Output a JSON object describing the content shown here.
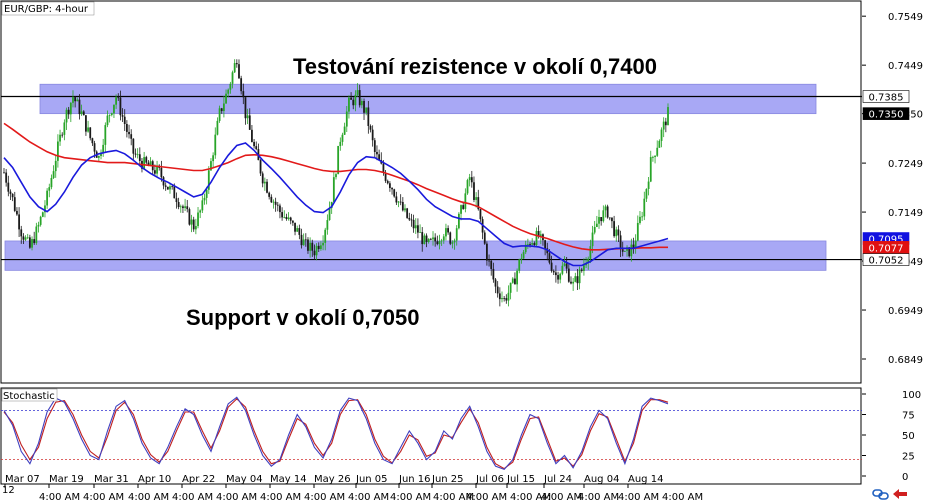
{
  "window": {
    "symbol_label": "EUR/GBP: 4-hour",
    "stoch_label": "Stochastic",
    "stoch_corner": "12"
  },
  "colors": {
    "zone": "#a8a8f5",
    "zone_border": "#8888e0",
    "ma_blue": "#1a1adc",
    "ma_red": "#e21a1a",
    "candle_up": "#28a428",
    "candle_down": "#1a1a1a",
    "stoch_k": "#4040c0",
    "stoch_d": "#c02020",
    "tag_blue": "#1010e0",
    "tag_red": "#e01010"
  },
  "chart_data": [
    {
      "type": "candlestick",
      "title": "EUR/GBP: 4-hour",
      "ylim": [
        0.68,
        0.758
      ],
      "y_ticks": [
        0.7549,
        0.7449,
        0.735,
        0.7249,
        0.7149,
        0.7049,
        0.6949,
        0.6849
      ],
      "y_tick_labels": [
        "0.7549",
        "0.7449",
        "0.7350",
        "0.7249",
        "0.7149",
        "0.7049",
        "0.6949",
        "0.6849"
      ],
      "x_labels": [
        "Mar 07",
        "Mar 19",
        "Mar 31",
        "Apr 10",
        "Apr 22",
        "May 04",
        "May 14",
        "May 26",
        "Jun 05",
        "Jun 16",
        "Jun 25",
        "Jul 06",
        "Jul 15",
        "Jul 24",
        "Aug 04",
        "Aug 14"
      ],
      "x_time_labels": [
        "4:00 AM",
        "4:00 AM",
        "4:00 AM",
        "4:00 AM",
        "4:00 AM",
        "4:00 AM",
        "4:00 AM",
        "4:00 AM",
        "4:00 AM",
        "4:00 AM",
        "4:00 AM",
        "4:00 AM",
        "4:00 AM",
        "4:00 AM",
        "4:00 AM",
        "4:00 AM"
      ],
      "close_series": [
        0.723,
        0.7175,
        0.711,
        0.7075,
        0.712,
        0.718,
        0.726,
        0.734,
        0.7385,
        0.735,
        0.73,
        0.726,
        0.734,
        0.7385,
        0.733,
        0.727,
        0.725,
        0.724,
        0.723,
        0.72,
        0.718,
        0.715,
        0.712,
        0.716,
        0.725,
        0.735,
        0.74,
        0.7465,
        0.735,
        0.728,
        0.722,
        0.718,
        0.715,
        0.713,
        0.711,
        0.708,
        0.707,
        0.71,
        0.718,
        0.73,
        0.737,
        0.7385,
        0.735,
        0.727,
        0.723,
        0.72,
        0.716,
        0.713,
        0.711,
        0.708,
        0.709,
        0.711,
        0.709,
        0.715,
        0.722,
        0.715,
        0.706,
        0.6995,
        0.697,
        0.7,
        0.706,
        0.709,
        0.71,
        0.706,
        0.702,
        0.704,
        0.7,
        0.703,
        0.708,
        0.714,
        0.715,
        0.71,
        0.706,
        0.708,
        0.715,
        0.725,
        0.73,
        0.735
      ],
      "ma_blue": [
        0.726,
        0.724,
        0.721,
        0.718,
        0.716,
        0.715,
        0.7165,
        0.719,
        0.722,
        0.7245,
        0.726,
        0.7268,
        0.7272,
        0.7275,
        0.7268,
        0.7255,
        0.724,
        0.7228,
        0.7218,
        0.721,
        0.72,
        0.719,
        0.718,
        0.7185,
        0.721,
        0.724,
        0.7265,
        0.7285,
        0.729,
        0.7275,
        0.7255,
        0.7238,
        0.722,
        0.72,
        0.718,
        0.7163,
        0.715,
        0.7148,
        0.716,
        0.719,
        0.7225,
        0.725,
        0.7262,
        0.726,
        0.725,
        0.724,
        0.7228,
        0.7212,
        0.7195,
        0.7175,
        0.716,
        0.715,
        0.714,
        0.7135,
        0.7135,
        0.713,
        0.7115,
        0.71,
        0.7085,
        0.7078,
        0.708,
        0.708,
        0.7078,
        0.7072,
        0.706,
        0.7048,
        0.704,
        0.704,
        0.7048,
        0.706,
        0.7072,
        0.7075,
        0.7075,
        0.7075,
        0.708,
        0.7085,
        0.709,
        0.7095
      ],
      "ma_red": [
        0.733,
        0.7318,
        0.7305,
        0.7292,
        0.7282,
        0.7272,
        0.7265,
        0.726,
        0.7258,
        0.7256,
        0.7254,
        0.7252,
        0.725,
        0.725,
        0.725,
        0.7248,
        0.7246,
        0.7244,
        0.7242,
        0.724,
        0.7238,
        0.7236,
        0.7234,
        0.7234,
        0.7238,
        0.7244,
        0.725,
        0.7258,
        0.7265,
        0.7266,
        0.7265,
        0.7262,
        0.7258,
        0.7253,
        0.7248,
        0.7243,
        0.7238,
        0.7234,
        0.7232,
        0.7232,
        0.7234,
        0.7236,
        0.7236,
        0.7234,
        0.723,
        0.7224,
        0.7218,
        0.7212,
        0.7205,
        0.7197,
        0.719,
        0.7183,
        0.7176,
        0.717,
        0.7166,
        0.716,
        0.715,
        0.714,
        0.713,
        0.712,
        0.7112,
        0.7105,
        0.71,
        0.7095,
        0.7089,
        0.7083,
        0.7078,
        0.7074,
        0.7072,
        0.7072,
        0.7073,
        0.7074,
        0.7075,
        0.7075,
        0.7076,
        0.7076,
        0.7077,
        0.7077
      ],
      "horizontal_lines": [
        0.7385,
        0.7052
      ],
      "zones": [
        {
          "name": "resistance",
          "from": 0.735,
          "to": 0.741
        },
        {
          "name": "support",
          "from": 0.703,
          "to": 0.709
        }
      ],
      "price_tags": [
        {
          "label": "0.7385",
          "value": 0.7385,
          "style": "plain"
        },
        {
          "label": "0.7350",
          "value": 0.735,
          "style": "dark"
        },
        {
          "label": "0.7095",
          "value": 0.7095,
          "style": "blue"
        },
        {
          "label": "0.7077",
          "value": 0.7077,
          "style": "red"
        },
        {
          "label": "0.7052",
          "value": 0.7052,
          "style": "plain"
        }
      ],
      "annotations": [
        {
          "text": "Testování rezistence v okolí 0,7400",
          "at": "upper-center"
        },
        {
          "text": "Support v okolí 0,7050",
          "at": "lower-left"
        }
      ],
      "grid": false
    },
    {
      "type": "line",
      "title": "Stochastic",
      "ylim": [
        0,
        100
      ],
      "y_ticks": [
        100,
        75,
        50,
        25,
        0
      ],
      "y_tick_labels": [
        "100",
        "75",
        "50",
        "25",
        "0"
      ],
      "levels": [
        80,
        20
      ],
      "k_series": [
        80,
        62,
        30,
        15,
        40,
        78,
        95,
        90,
        70,
        45,
        25,
        20,
        55,
        85,
        92,
        70,
        40,
        22,
        15,
        35,
        60,
        82,
        75,
        50,
        30,
        60,
        88,
        96,
        80,
        50,
        25,
        12,
        20,
        50,
        75,
        60,
        35,
        22,
        45,
        80,
        95,
        92,
        70,
        40,
        20,
        15,
        35,
        55,
        40,
        20,
        30,
        55,
        45,
        70,
        85,
        60,
        30,
        12,
        8,
        20,
        50,
        75,
        70,
        40,
        15,
        25,
        10,
        30,
        60,
        80,
        70,
        40,
        15,
        45,
        85,
        95,
        92,
        88
      ],
      "d_series": [
        78,
        65,
        38,
        20,
        35,
        70,
        90,
        92,
        75,
        50,
        30,
        22,
        48,
        80,
        90,
        75,
        45,
        26,
        17,
        30,
        55,
        78,
        78,
        55,
        34,
        55,
        84,
        94,
        84,
        55,
        30,
        15,
        18,
        45,
        70,
        63,
        40,
        25,
        40,
        75,
        92,
        93,
        75,
        45,
        24,
        16,
        30,
        50,
        44,
        24,
        28,
        50,
        47,
        65,
        82,
        65,
        35,
        15,
        9,
        17,
        45,
        70,
        72,
        45,
        18,
        22,
        12,
        26,
        55,
        76,
        72,
        45,
        18,
        40,
        80,
        93,
        93,
        90
      ]
    }
  ]
}
